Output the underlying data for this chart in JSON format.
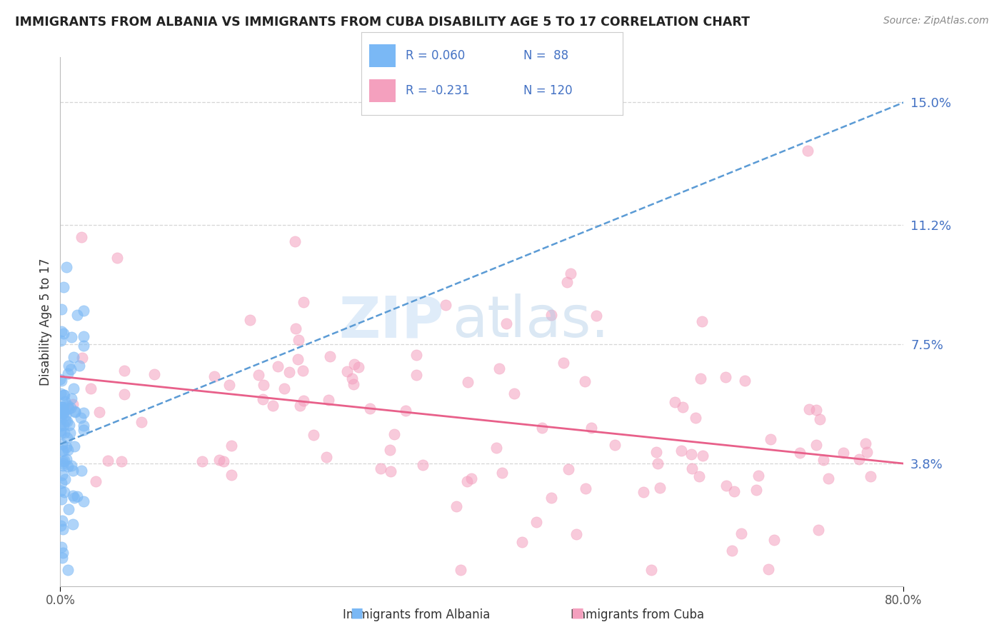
{
  "title": "IMMIGRANTS FROM ALBANIA VS IMMIGRANTS FROM CUBA DISABILITY AGE 5 TO 17 CORRELATION CHART",
  "source": "Source: ZipAtlas.com",
  "ylabel": "Disability Age 5 to 17",
  "x_min": 0.0,
  "x_max": 0.8,
  "y_min": 0.0,
  "y_max": 0.164,
  "y_ticks": [
    0.038,
    0.075,
    0.112,
    0.15
  ],
  "y_tick_labels": [
    "3.8%",
    "7.5%",
    "11.2%",
    "15.0%"
  ],
  "albania_color": "#7ab8f5",
  "cuba_color": "#f4a0be",
  "albania_line_color": "#5b9bd5",
  "cuba_line_color": "#e8608a",
  "grid_color": "#cccccc",
  "background_color": "#ffffff",
  "watermark_zip_color": "#c5ddf5",
  "watermark_atlas_color": "#b0cce8",
  "title_color": "#222222",
  "source_color": "#888888",
  "ytick_color": "#4472c4",
  "xtick_color": "#555555"
}
